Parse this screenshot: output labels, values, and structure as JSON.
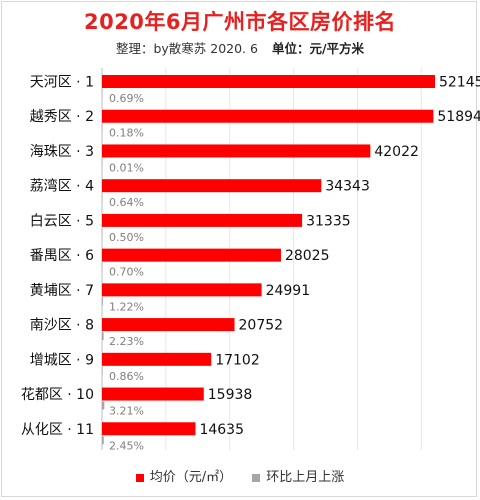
{
  "header": {
    "title": "2020年6月广州市各区房价排名",
    "credit": "整理：by散寒苏  2020. 6",
    "unit": "单位：元/平方米"
  },
  "colors": {
    "price": "#ff0000",
    "change": "#a6a6a6",
    "change_text": "#7f7f7f"
  },
  "chart_data": {
    "type": "bar",
    "orientation": "horizontal",
    "categories": [
      "天河区 · 1",
      "越秀区 · 2",
      "海珠区 · 3",
      "荔湾区 · 4",
      "白云区 · 5",
      "番禺区 · 6",
      "黄埔区 · 7",
      "南沙区 · 8",
      "增城区 · 9",
      "花都区 · 10",
      "从化区 · 11"
    ],
    "series": [
      {
        "name": "均价（元/㎡）",
        "values": [
          52145,
          51894,
          42022,
          34343,
          31335,
          28025,
          24991,
          20752,
          17102,
          15938,
          14635
        ]
      },
      {
        "name": "环比上月上涨",
        "values": [
          0.69,
          0.18,
          0.01,
          0.64,
          0.5,
          0.7,
          1.22,
          2.23,
          0.86,
          3.21,
          2.45
        ]
      }
    ],
    "value_labels": [
      "52145",
      "51894",
      "42022",
      "34343",
      "31335",
      "28025",
      "24991",
      "20752",
      "17102",
      "15938",
      "14635"
    ],
    "change_labels": [
      "0.69%",
      "0.18%",
      "0.01%",
      "0.64%",
      "0.50%",
      "0.70%",
      "1.22%",
      "2.23%",
      "0.86%",
      "3.21%",
      "2.45%"
    ],
    "grid": true,
    "legend": "bottom"
  }
}
